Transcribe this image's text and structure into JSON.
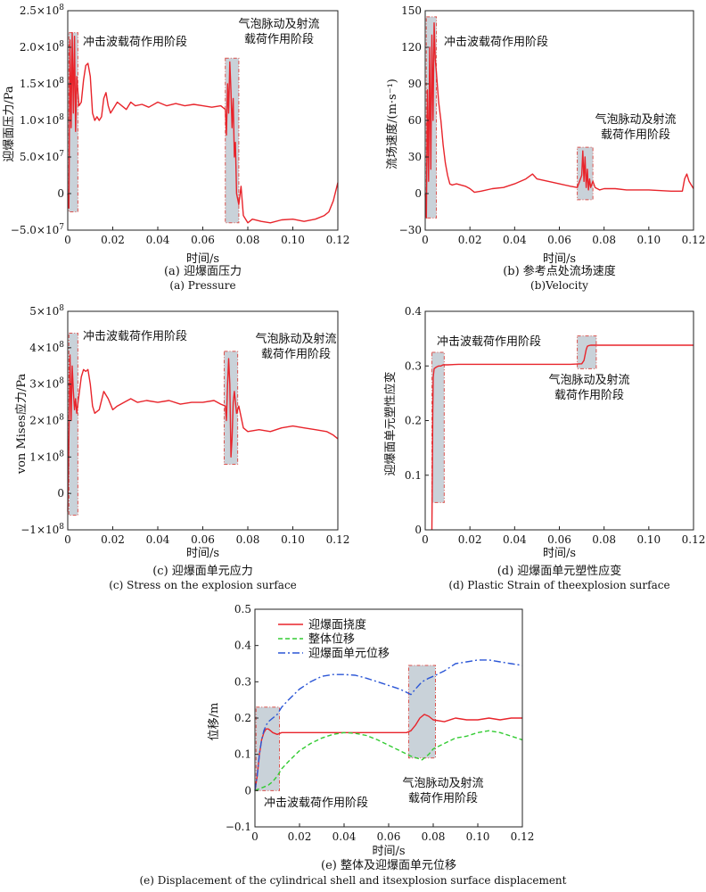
{
  "colors": {
    "red": "#e8242b",
    "green": "#33cc33",
    "blue": "#2b56d6",
    "highlight_fill": "#c9d2d9",
    "highlight_stroke": "#d9534f"
  },
  "chart_data": [
    {
      "id": "a",
      "type": "line",
      "caption_cn": "(a) 迎爆面压力",
      "caption_en": "(a) Pressure",
      "xlabel": "时间/s",
      "ylabel": "迎爆面压力/Pa",
      "xlim": [
        0,
        0.12
      ],
      "ylim": [
        -50000000.0,
        250000000.0
      ],
      "xticks": [
        "0",
        "0.02",
        "0.04",
        "0.06",
        "0.08",
        "0.10",
        "0.12"
      ],
      "yticks": [
        {
          "mant": "−5.0×10",
          "exp": "7"
        },
        {
          "mant": "0",
          "exp": ""
        },
        {
          "mant": "5.0×10",
          "exp": "7"
        },
        {
          "mant": "1.0×10",
          "exp": "8"
        },
        {
          "mant": "1.5×10",
          "exp": "8"
        },
        {
          "mant": "2.0×10",
          "exp": "8"
        },
        {
          "mant": "2.5×10",
          "exp": "8"
        }
      ],
      "annotations": [
        {
          "lines": [
            "冲击波载荷作用阶段"
          ]
        },
        {
          "lines": [
            "气泡脉动及射流",
            "载荷作用阶段"
          ]
        }
      ],
      "highlights": [
        [
          0.0005,
          0.0045,
          -25000000.0,
          220000000.0
        ],
        [
          0.07,
          0.076,
          -40000000.0,
          185000000.0
        ]
      ],
      "series": [
        {
          "color": "red",
          "style": "solid",
          "x": [
            0,
            0.0005,
            0.001,
            0.0015,
            0.002,
            0.0025,
            0.003,
            0.0035,
            0.004,
            0.005,
            0.006,
            0.007,
            0.008,
            0.009,
            0.01,
            0.011,
            0.012,
            0.013,
            0.014,
            0.015,
            0.016,
            0.017,
            0.018,
            0.019,
            0.02,
            0.022,
            0.024,
            0.026,
            0.028,
            0.03,
            0.033,
            0.036,
            0.04,
            0.044,
            0.048,
            0.052,
            0.056,
            0.06,
            0.064,
            0.068,
            0.07,
            0.0705,
            0.071,
            0.0715,
            0.072,
            0.0725,
            0.073,
            0.0735,
            0.074,
            0.0745,
            0.075,
            0.076,
            0.077,
            0.078,
            0.08,
            0.082,
            0.086,
            0.09,
            0.095,
            0.1,
            0.105,
            0.11,
            0.114,
            0.116,
            0.118,
            0.12
          ],
          "y": [
            0,
            -20000000.0,
            210000000.0,
            90000000.0,
            220000000.0,
            110000000.0,
            215000000.0,
            85000000.0,
            160000000.0,
            120000000.0,
            125000000.0,
            155000000.0,
            175000000.0,
            178000000.0,
            160000000.0,
            110000000.0,
            100000000.0,
            105000000.0,
            100000000.0,
            105000000.0,
            130000000.0,
            138000000.0,
            120000000.0,
            110000000.0,
            115000000.0,
            125000000.0,
            120000000.0,
            115000000.0,
            125000000.0,
            120000000.0,
            122000000.0,
            118000000.0,
            125000000.0,
            120000000.0,
            123000000.0,
            120000000.0,
            122000000.0,
            120000000.0,
            118000000.0,
            120000000.0,
            115000000.0,
            80000000.0,
            150000000.0,
            110000000.0,
            180000000.0,
            140000000.0,
            90000000.0,
            130000000.0,
            50000000.0,
            70000000.0,
            0.0,
            -15000000.0,
            10000000.0,
            -30000000.0,
            -40000000.0,
            -35000000.0,
            -38000000.0,
            -40000000.0,
            -36000000.0,
            -35000000.0,
            -38000000.0,
            -35000000.0,
            -30000000.0,
            -25000000.0,
            -10000000.0,
            15000000.0
          ]
        }
      ]
    },
    {
      "id": "b",
      "type": "line",
      "caption_cn": "(b) 参考点处流场速度",
      "caption_en": "(b)Velocity",
      "xlabel": "时间/s",
      "ylabel": "流场速度/(m·s⁻¹)",
      "xlim": [
        0,
        0.12
      ],
      "ylim": [
        -30,
        150
      ],
      "xticks": [
        "0",
        "0.02",
        "0.04",
        "0.06",
        "0.08",
        "0.10",
        "0.12"
      ],
      "yticks": [
        "−30",
        "0",
        "30",
        "60",
        "90",
        "120",
        "150"
      ],
      "annotations": [
        {
          "lines": [
            "冲击波载荷作用阶段"
          ]
        },
        {
          "lines": [
            "气泡脉动及射流",
            "载荷作用阶段"
          ]
        }
      ],
      "highlights": [
        [
          0.0005,
          0.005,
          -20,
          145
        ],
        [
          0.068,
          0.075,
          -5,
          38
        ]
      ],
      "series": [
        {
          "color": "red",
          "style": "solid",
          "x": [
            0,
            0.0005,
            0.001,
            0.0015,
            0.002,
            0.0025,
            0.003,
            0.0035,
            0.004,
            0.0045,
            0.005,
            0.006,
            0.007,
            0.008,
            0.009,
            0.01,
            0.011,
            0.012,
            0.014,
            0.016,
            0.018,
            0.02,
            0.022,
            0.025,
            0.03,
            0.035,
            0.04,
            0.045,
            0.048,
            0.05,
            0.055,
            0.06,
            0.065,
            0.068,
            0.07,
            0.0705,
            0.071,
            0.0715,
            0.072,
            0.0725,
            0.073,
            0.0735,
            0.074,
            0.075,
            0.076,
            0.078,
            0.08,
            0.085,
            0.09,
            0.1,
            0.11,
            0.115,
            0.116,
            0.117,
            0.118,
            0.12
          ],
          "y": [
            0,
            -20,
            85,
            10,
            120,
            20,
            130,
            60,
            140,
            110,
            100,
            75,
            60,
            40,
            25,
            15,
            8,
            7,
            8,
            7,
            6,
            4,
            1,
            2,
            4,
            5,
            8,
            12,
            16,
            12,
            10,
            8,
            6,
            5,
            15,
            35,
            10,
            30,
            5,
            20,
            3,
            12,
            5,
            10,
            5,
            3,
            4,
            4,
            3,
            3,
            2,
            2,
            12,
            16,
            10,
            4
          ]
        }
      ]
    },
    {
      "id": "c",
      "type": "line",
      "caption_cn": "(c) 迎爆面单元应力",
      "caption_en": "(c) Stress on the explosion surface",
      "xlabel": "时间/s",
      "ylabel": "von Mises应力/Pa",
      "xlim": [
        0,
        0.12
      ],
      "ylim": [
        -100000000.0,
        500000000.0
      ],
      "xticks": [
        "0",
        "0.02",
        "0.04",
        "0.06",
        "0.08",
        "0.10",
        "0.12"
      ],
      "yticks": [
        {
          "mant": "−1×10",
          "exp": "8"
        },
        {
          "mant": "0",
          "exp": ""
        },
        {
          "mant": "1×10",
          "exp": "8"
        },
        {
          "mant": "2×10",
          "exp": "8"
        },
        {
          "mant": "3×10",
          "exp": "8"
        },
        {
          "mant": "4×10",
          "exp": "8"
        },
        {
          "mant": "5×10",
          "exp": "8"
        }
      ],
      "annotations": [
        {
          "lines": [
            "冲击波载荷作用阶段"
          ]
        },
        {
          "lines": [
            "气泡脉动及射流",
            "载荷作用阶段"
          ]
        }
      ],
      "highlights": [
        [
          0.0005,
          0.0045,
          -60000000.0,
          440000000.0
        ],
        [
          0.0695,
          0.0755,
          80000000.0,
          390000000.0
        ]
      ],
      "series": [
        {
          "color": "red",
          "style": "solid",
          "x": [
            0,
            0.0005,
            0.001,
            0.0015,
            0.002,
            0.0025,
            0.003,
            0.0035,
            0.004,
            0.005,
            0.006,
            0.007,
            0.008,
            0.009,
            0.01,
            0.011,
            0.012,
            0.014,
            0.016,
            0.018,
            0.02,
            0.022,
            0.025,
            0.028,
            0.031,
            0.035,
            0.04,
            0.045,
            0.05,
            0.055,
            0.06,
            0.065,
            0.068,
            0.07,
            0.0705,
            0.071,
            0.0715,
            0.072,
            0.0725,
            0.073,
            0.0735,
            0.074,
            0.075,
            0.076,
            0.078,
            0.08,
            0.085,
            0.09,
            0.095,
            0.1,
            0.105,
            0.11,
            0.115,
            0.118,
            0.12
          ],
          "y": [
            -50000000.0,
            150000000.0,
            380000000.0,
            200000000.0,
            350000000.0,
            280000000.0,
            230000000.0,
            260000000.0,
            220000000.0,
            270000000.0,
            320000000.0,
            340000000.0,
            335000000.0,
            340000000.0,
            300000000.0,
            240000000.0,
            220000000.0,
            230000000.0,
            280000000.0,
            260000000.0,
            230000000.0,
            240000000.0,
            250000000.0,
            260000000.0,
            250000000.0,
            255000000.0,
            250000000.0,
            255000000.0,
            245000000.0,
            250000000.0,
            250000000.0,
            255000000.0,
            245000000.0,
            240000000.0,
            200000000.0,
            300000000.0,
            370000000.0,
            300000000.0,
            100000000.0,
            150000000.0,
            250000000.0,
            280000000.0,
            220000000.0,
            240000000.0,
            180000000.0,
            170000000.0,
            175000000.0,
            170000000.0,
            180000000.0,
            185000000.0,
            180000000.0,
            175000000.0,
            170000000.0,
            160000000.0,
            150000000.0
          ]
        }
      ]
    },
    {
      "id": "d",
      "type": "line",
      "caption_cn": "(d) 迎爆面单元塑性应变",
      "caption_en": "(d) Plastic Strain of theexplosion surface",
      "xlabel": "时间/s",
      "ylabel": "迎爆面单元塑性应变",
      "xlim": [
        0,
        0.12
      ],
      "ylim": [
        0,
        0.4
      ],
      "xticks": [
        "0",
        "0.02",
        "0.04",
        "0.06",
        "0.08",
        "0.10",
        "0.12"
      ],
      "yticks": [
        "0",
        "0.1",
        "0.2",
        "0.3",
        "0.4"
      ],
      "annotations": [
        {
          "lines": [
            "冲击波载荷作用阶段"
          ]
        },
        {
          "lines": [
            "气泡脉动及射流",
            "载荷作用阶段"
          ]
        }
      ],
      "highlights": [
        [
          0.003,
          0.0085,
          0.05,
          0.325
        ],
        [
          0.068,
          0.0765,
          0.295,
          0.355
        ]
      ],
      "series": [
        {
          "color": "red",
          "style": "solid",
          "x": [
            0.003,
            0.0032,
            0.0034,
            0.0036,
            0.004,
            0.005,
            0.006,
            0.007,
            0.008,
            0.01,
            0.015,
            0.02,
            0.03,
            0.04,
            0.05,
            0.06,
            0.065,
            0.07,
            0.071,
            0.072,
            0.0725,
            0.073,
            0.074,
            0.08,
            0.09,
            0.1,
            0.11,
            0.12
          ],
          "y": [
            0,
            0.1,
            0.22,
            0.28,
            0.295,
            0.298,
            0.3,
            0.3,
            0.302,
            0.302,
            0.303,
            0.303,
            0.303,
            0.303,
            0.303,
            0.303,
            0.303,
            0.304,
            0.31,
            0.33,
            0.336,
            0.337,
            0.338,
            0.338,
            0.338,
            0.338,
            0.338,
            0.338
          ]
        }
      ]
    },
    {
      "id": "e",
      "type": "line",
      "caption_cn": "(e) 整体及迎爆面单元位移",
      "caption_en": "(e) Displacement of the cylindrical shell and itsexplosion surface displacement",
      "xlabel": "时间/s",
      "ylabel": "位移/m",
      "xlim": [
        0,
        0.12
      ],
      "ylim": [
        -0.1,
        0.5
      ],
      "xticks": [
        "0",
        "0.02",
        "0.04",
        "0.06",
        "0.08",
        "0.10",
        "0.12"
      ],
      "yticks": [
        "−0.1",
        "0",
        "0.1",
        "0.2",
        "0.3",
        "0.4",
        "0.5"
      ],
      "annotations": [
        {
          "lines": [
            "冲击波载荷作用阶段"
          ]
        },
        {
          "lines": [
            "气泡脉动及射流",
            "载荷作用阶段"
          ]
        }
      ],
      "highlights": [
        [
          0.0005,
          0.011,
          0,
          0.23
        ],
        [
          0.069,
          0.081,
          0.09,
          0.345
        ]
      ],
      "legend": {
        "position": "top-left"
      },
      "series": [
        {
          "name": "迎爆面挠度",
          "color": "red",
          "style": "solid",
          "x": [
            0,
            0.001,
            0.002,
            0.003,
            0.004,
            0.005,
            0.006,
            0.007,
            0.008,
            0.01,
            0.012,
            0.015,
            0.02,
            0.03,
            0.04,
            0.05,
            0.06,
            0.068,
            0.07,
            0.072,
            0.074,
            0.076,
            0.078,
            0.08,
            0.085,
            0.09,
            0.095,
            0.1,
            0.105,
            0.11,
            0.115,
            0.12
          ],
          "y": [
            0,
            0.04,
            0.1,
            0.14,
            0.16,
            0.17,
            0.17,
            0.165,
            0.16,
            0.155,
            0.16,
            0.16,
            0.16,
            0.16,
            0.16,
            0.16,
            0.16,
            0.16,
            0.165,
            0.18,
            0.2,
            0.21,
            0.205,
            0.195,
            0.19,
            0.2,
            0.195,
            0.195,
            0.2,
            0.195,
            0.2,
            0.2
          ]
        },
        {
          "name": "整体位移",
          "color": "green",
          "style": "dashed",
          "x": [
            0,
            0.002,
            0.004,
            0.006,
            0.008,
            0.01,
            0.012,
            0.015,
            0.02,
            0.025,
            0.03,
            0.035,
            0.04,
            0.045,
            0.05,
            0.055,
            0.06,
            0.065,
            0.07,
            0.075,
            0.078,
            0.08,
            0.085,
            0.09,
            0.095,
            0.1,
            0.105,
            0.11,
            0.115,
            0.12
          ],
          "y": [
            0,
            0.005,
            0.01,
            0.015,
            0.025,
            0.04,
            0.06,
            0.08,
            0.11,
            0.13,
            0.145,
            0.155,
            0.16,
            0.158,
            0.152,
            0.14,
            0.125,
            0.11,
            0.095,
            0.085,
            0.1,
            0.115,
            0.13,
            0.145,
            0.15,
            0.16,
            0.165,
            0.16,
            0.15,
            0.14
          ]
        },
        {
          "name": "迎爆面单元位移",
          "color": "blue",
          "style": "dashdot",
          "x": [
            0,
            0.001,
            0.002,
            0.003,
            0.004,
            0.005,
            0.006,
            0.008,
            0.01,
            0.012,
            0.015,
            0.02,
            0.025,
            0.03,
            0.035,
            0.04,
            0.045,
            0.05,
            0.055,
            0.06,
            0.065,
            0.07,
            0.072,
            0.075,
            0.078,
            0.08,
            0.085,
            0.09,
            0.095,
            0.1,
            0.105,
            0.11,
            0.115,
            0.12
          ],
          "y": [
            0,
            0.04,
            0.1,
            0.14,
            0.165,
            0.18,
            0.19,
            0.2,
            0.21,
            0.23,
            0.25,
            0.28,
            0.3,
            0.315,
            0.32,
            0.32,
            0.318,
            0.31,
            0.3,
            0.29,
            0.28,
            0.265,
            0.28,
            0.3,
            0.31,
            0.315,
            0.33,
            0.35,
            0.355,
            0.36,
            0.36,
            0.355,
            0.35,
            0.345
          ]
        }
      ]
    }
  ]
}
